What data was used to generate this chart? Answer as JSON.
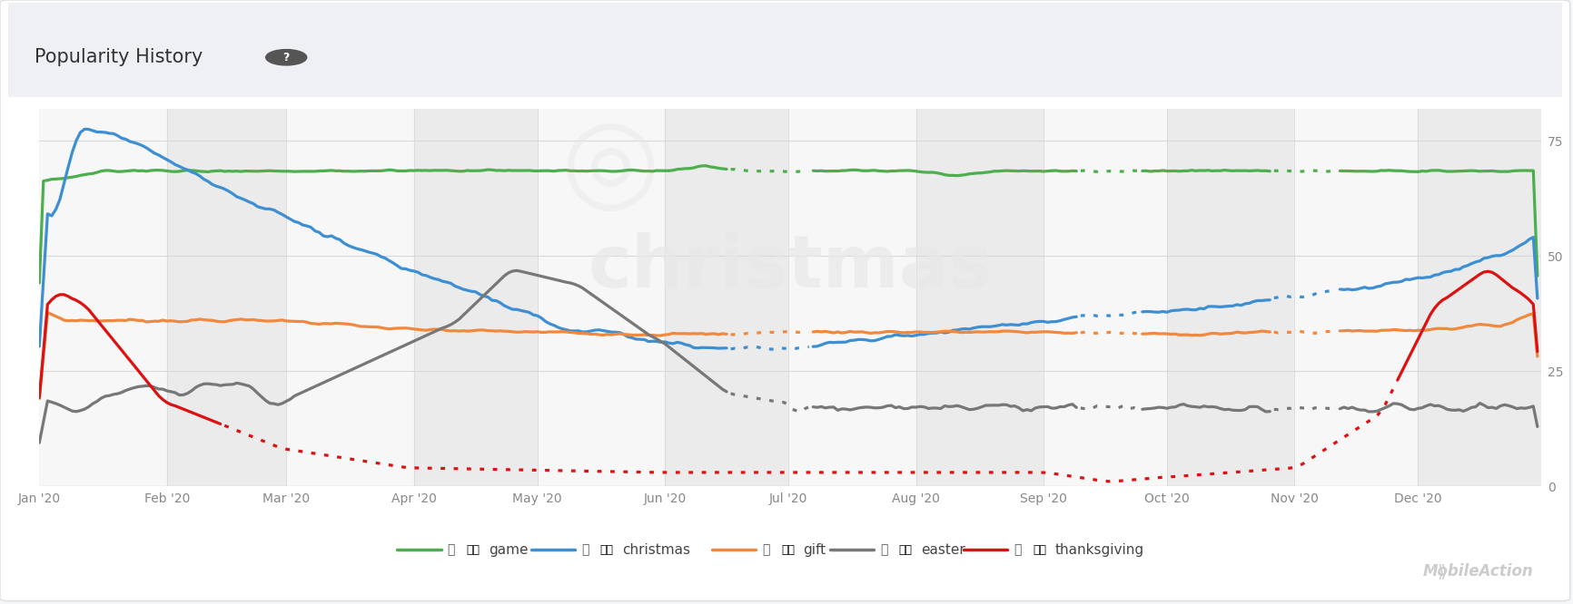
{
  "title": "Popularity History",
  "background_color": "#ffffff",
  "header_bg": "#eef0f3",
  "plot_bg": "#ffffff",
  "ylim": [
    0,
    82
  ],
  "yticks": [
    0,
    25,
    50,
    75
  ],
  "grid_color": "#e0e0e0",
  "alt_col_color": "#f0f0f0",
  "series_colors": {
    "game": "#4cae4c",
    "christmas": "#3d8fd4",
    "gift": "#f0883e",
    "easter": "#777777",
    "thanksgiving": "#dd1111"
  },
  "month_labels": [
    "Jan '20",
    "Feb '20",
    "Mar '20",
    "Apr '20",
    "May '20",
    "Jun '20",
    "Jul '20",
    "Aug '20",
    "Sep '20",
    "Oct '20",
    "Nov '20",
    "Dec '20"
  ],
  "month_day_starts": [
    0,
    31,
    60,
    91,
    121,
    152,
    182,
    213,
    244,
    274,
    305,
    335
  ],
  "total_days": 365
}
